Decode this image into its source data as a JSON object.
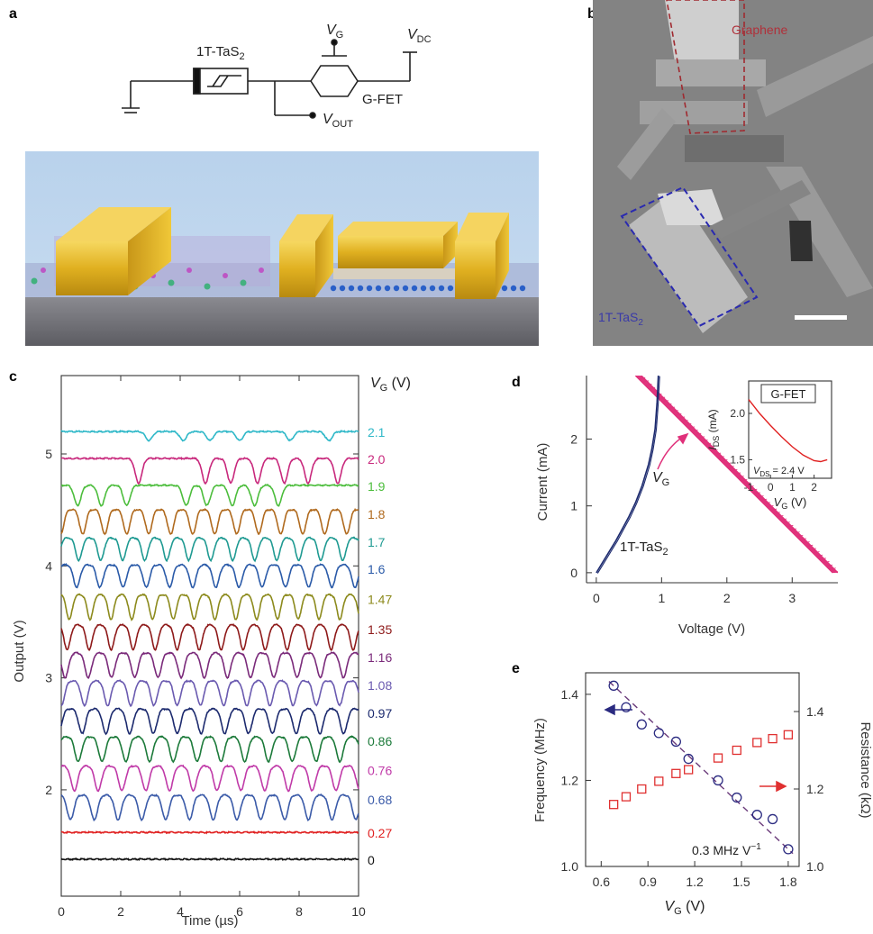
{
  "panels": {
    "a": "a",
    "b": "b",
    "c": "c",
    "d": "d",
    "e": "e"
  },
  "circuit": {
    "component_label": "1T-TaS",
    "component_sub": "2",
    "vg_label": "V",
    "vg_sub": "G",
    "vdc_label": "V",
    "vdc_sub": "DC",
    "gfet_label": "G-FET",
    "vout_label": "V",
    "vout_sub": "OUT"
  },
  "micrograph": {
    "graphene_label": "Graphene",
    "tas2_label": "1T-TaS",
    "tas2_sub": "2",
    "colors": {
      "graphene": "#b0303a",
      "tas2": "#3a3aa8"
    }
  },
  "chart_data": [
    {
      "panel": "c",
      "type": "line",
      "xlabel": "Time (µs)",
      "ylabel": "Output (V)",
      "legend_title_main": "V",
      "legend_title_sub": "G",
      "legend_title_unit": " (V)",
      "xlim": [
        0,
        10
      ],
      "ylim": [
        1.05,
        5.7
      ],
      "xticks": [
        "0",
        "2",
        "4",
        "6",
        "8",
        "10"
      ],
      "yticks": [
        "2",
        "3",
        "4",
        "5"
      ],
      "series": [
        {
          "name": "2.1",
          "baseline": 5.2,
          "amp": 0.08,
          "mode": "sparse",
          "dips": [
            2.95,
            4.1,
            5.0,
            6.0,
            7.7,
            9.0
          ],
          "color": "#2fb8c8"
        },
        {
          "name": "2.0",
          "baseline": 4.96,
          "amp": 0.22,
          "mode": "sparse",
          "dips": [
            2.6,
            4.85,
            5.7,
            6.6,
            7.5,
            8.3,
            9.3
          ],
          "color": "#c8287c"
        },
        {
          "name": "1.9",
          "baseline": 4.72,
          "amp": 0.18,
          "mode": "sparse",
          "dips": [
            0.55,
            1.35,
            2.2,
            4.2,
            4.9,
            5.75,
            6.5,
            7.3
          ],
          "color": "#4cbd3c"
        },
        {
          "name": "1.8",
          "baseline": 4.47,
          "amp": 0.22,
          "mode": "periodic",
          "period": 0.74,
          "color": "#b06a1e"
        },
        {
          "name": "1.7",
          "baseline": 4.22,
          "amp": 0.2,
          "mode": "periodic",
          "period": 0.74,
          "color": "#1f9a92"
        },
        {
          "name": "1.6",
          "baseline": 3.98,
          "amp": 0.2,
          "mode": "periodic",
          "period": 0.78,
          "color": "#2a5aa8"
        },
        {
          "name": "1.47",
          "baseline": 3.71,
          "amp": 0.22,
          "mode": "periodic",
          "period": 0.7,
          "color": "#8c8a1c"
        },
        {
          "name": "1.35",
          "baseline": 3.44,
          "amp": 0.22,
          "mode": "periodic",
          "period": 0.74,
          "color": "#8e1a1a"
        },
        {
          "name": "1.16",
          "baseline": 3.19,
          "amp": 0.22,
          "mode": "periodic",
          "period": 0.78,
          "color": "#7a2a7a"
        },
        {
          "name": "1.08",
          "baseline": 2.94,
          "amp": 0.22,
          "mode": "periodic",
          "period": 0.78,
          "color": "#6a5ab0"
        },
        {
          "name": "0.97",
          "baseline": 2.69,
          "amp": 0.22,
          "mode": "periodic",
          "period": 0.8,
          "color": "#1c2a6e"
        },
        {
          "name": "0.86",
          "baseline": 2.44,
          "amp": 0.22,
          "mode": "periodic",
          "period": 0.8,
          "color": "#1c7a3a"
        },
        {
          "name": "0.76",
          "baseline": 2.18,
          "amp": 0.22,
          "mode": "periodic",
          "period": 0.8,
          "color": "#c03aa8"
        },
        {
          "name": "0.68",
          "baseline": 1.92,
          "amp": 0.22,
          "mode": "periodic",
          "period": 0.8,
          "color": "#3a5aa8"
        },
        {
          "name": "0.27",
          "baseline": 1.62,
          "amp": 0.0,
          "mode": "flat",
          "color": "#e02020"
        },
        {
          "name": "0",
          "baseline": 1.38,
          "amp": 0.0,
          "mode": "flat",
          "color": "#111111"
        }
      ]
    },
    {
      "panel": "d",
      "type": "line",
      "xlabel": "Voltage (V)",
      "ylabel": "Current (mA)",
      "xlim": [
        -0.15,
        3.7
      ],
      "ylim": [
        -0.15,
        2.95
      ],
      "xticks": [
        0,
        1,
        2,
        3
      ],
      "yticks": [
        0,
        1,
        2
      ],
      "tas2_label": "1T-TaS",
      "tas2_sub": "2",
      "vg_label": "V",
      "vg_sub": "G",
      "tas2_curve": {
        "color": "#1c2a6e",
        "x": [
          0,
          0.1,
          0.2,
          0.3,
          0.4,
          0.5,
          0.6,
          0.7,
          0.8,
          0.85,
          0.9,
          0.93,
          0.95
        ],
        "y": [
          0,
          0.16,
          0.32,
          0.48,
          0.66,
          0.84,
          1.05,
          1.3,
          1.62,
          1.85,
          2.15,
          2.55,
          2.95
        ]
      },
      "load_lines": {
        "color": "#e0307a",
        "count": 9,
        "x_start": 0.6,
        "y_start": 2.95,
        "x_end_first": 3.62,
        "x_end_last": 3.7
      },
      "inset": {
        "title": "G-FET",
        "ylabel_main": "I",
        "ylabel_sub": "DS",
        "ylabel_unit": " (mA)",
        "xlabel_main": "V",
        "xlabel_sub": "G",
        "xlabel_unit": " (V)",
        "note_main": "V",
        "note_sub": "DS",
        "note_rest": " = 2.4 V",
        "xlim": [
          -1,
          2.8
        ],
        "ylim": [
          1.3,
          2.35
        ],
        "xticks": [
          -1,
          0,
          1,
          2
        ],
        "yticks": [
          1.5,
          2.0
        ],
        "ytick_labels": [
          "1.5",
          "2.0"
        ],
        "color": "#e02020",
        "x": [
          -1,
          -0.5,
          0,
          0.5,
          1,
          1.5,
          2,
          2.3,
          2.6
        ],
        "y": [
          2.15,
          2.0,
          1.87,
          1.75,
          1.64,
          1.55,
          1.49,
          1.48,
          1.5
        ]
      }
    },
    {
      "panel": "e",
      "type": "scatter",
      "xlabel_main": "V",
      "xlabel_sub": "G",
      "xlabel_unit": " (V)",
      "ylabel_left": "Frequency (MHz)",
      "ylabel_right": "Resistance (kΩ)",
      "annotation": "0.3 MHz V",
      "annotation_sup": "−1",
      "xlim": [
        0.5,
        1.87
      ],
      "ylim_left": [
        1.0,
        1.45
      ],
      "ylim_right": [
        1.0,
        1.5
      ],
      "xticks": [
        "0.6",
        "0.9",
        "1.2",
        "1.5",
        "1.8"
      ],
      "yticks_left": [
        "1.0",
        "1.2",
        "1.4"
      ],
      "yticks_right": [
        "1.0",
        "1.2",
        "1.4"
      ],
      "x": [
        0.68,
        0.76,
        0.86,
        0.97,
        1.08,
        1.16,
        1.35,
        1.47,
        1.6,
        1.7,
        1.8
      ],
      "frequency": {
        "color": "#2a2a80",
        "values": [
          1.42,
          1.37,
          1.33,
          1.31,
          1.29,
          1.25,
          1.2,
          1.16,
          1.12,
          1.11,
          1.04
        ]
      },
      "resistance": {
        "color": "#e03030",
        "values": [
          1.16,
          1.18,
          1.2,
          1.22,
          1.24,
          1.25,
          1.28,
          1.3,
          1.32,
          1.33,
          1.34
        ]
      },
      "fit_line": {
        "x": [
          0.65,
          1.83
        ],
        "y": [
          1.43,
          1.03
        ]
      }
    }
  ]
}
